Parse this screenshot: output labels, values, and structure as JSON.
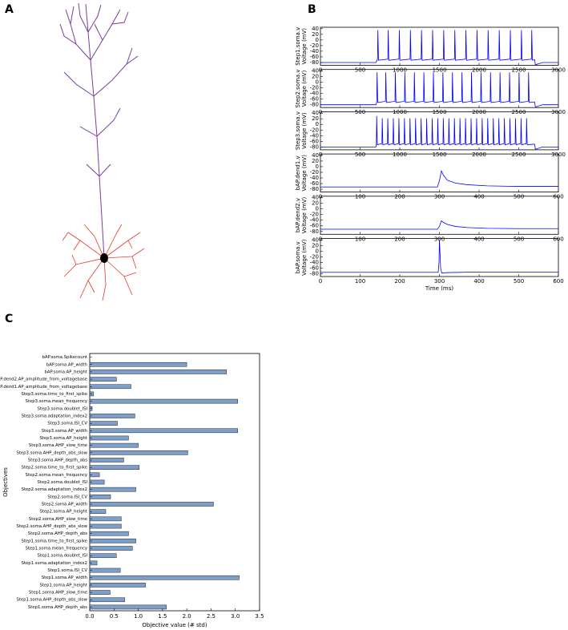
{
  "panel_labels": [
    "A",
    "B",
    "C"
  ],
  "chart_data": [
    {
      "type": "line",
      "ylabel": [
        "Step1.soma.v",
        "Voltage (mV)"
      ],
      "color": "#0000ff",
      "x": [
        0,
        700,
        720,
        724,
        732,
        850,
        854,
        862,
        990,
        994,
        1002,
        1130,
        1134,
        1142,
        1270,
        1274,
        1282,
        1410,
        1414,
        1422,
        1550,
        1554,
        1562,
        1690,
        1694,
        1702,
        1830,
        1834,
        1842,
        1970,
        1974,
        1982,
        2110,
        2114,
        2122,
        2250,
        2254,
        2262,
        2390,
        2394,
        2402,
        2530,
        2534,
        2542,
        2660,
        2664,
        2672,
        2700,
        2710,
        2800,
        3000
      ],
      "values": [
        -80,
        -80,
        -68,
        35,
        -72,
        -68,
        35,
        -72,
        -68,
        35,
        -72,
        -68,
        35,
        -72,
        -68,
        35,
        -72,
        -68,
        35,
        -72,
        -68,
        35,
        -72,
        -68,
        35,
        -72,
        -68,
        35,
        -72,
        -68,
        35,
        -72,
        -68,
        35,
        -72,
        -68,
        35,
        -72,
        -68,
        35,
        -72,
        -68,
        35,
        -72,
        -68,
        35,
        -72,
        -70,
        -88,
        -80,
        -80
      ],
      "xlim": [
        0,
        3000
      ],
      "xticks": [
        0,
        500,
        1000,
        1500,
        2000,
        2500,
        3000
      ],
      "ylim": [
        -90,
        45
      ],
      "yticks": [
        40,
        20,
        0,
        -20,
        -40,
        -60,
        -80
      ]
    },
    {
      "type": "line",
      "ylabel": [
        "Step2.soma.v",
        "Voltage (mV)"
      ],
      "color": "#0000ff",
      "x": [
        0,
        700,
        710,
        714,
        722,
        820,
        824,
        832,
        940,
        944,
        952,
        1060,
        1064,
        1072,
        1180,
        1184,
        1192,
        1300,
        1304,
        1312,
        1420,
        1424,
        1432,
        1540,
        1544,
        1552,
        1660,
        1664,
        1672,
        1780,
        1784,
        1792,
        1900,
        1904,
        1912,
        2020,
        2024,
        2032,
        2140,
        2144,
        2152,
        2260,
        2264,
        2272,
        2380,
        2384,
        2392,
        2500,
        2504,
        2512,
        2620,
        2624,
        2632,
        2700,
        2710,
        2800,
        3000
      ],
      "values": [
        -80,
        -80,
        -68,
        35,
        -72,
        -68,
        35,
        -72,
        -68,
        35,
        -72,
        -68,
        35,
        -72,
        -68,
        35,
        -72,
        -68,
        35,
        -72,
        -68,
        35,
        -72,
        -68,
        35,
        -72,
        -68,
        35,
        -72,
        -68,
        35,
        -72,
        -68,
        35,
        -72,
        -68,
        35,
        -72,
        -68,
        35,
        -72,
        -68,
        35,
        -72,
        -68,
        35,
        -72,
        -68,
        35,
        -72,
        -68,
        35,
        -72,
        -70,
        -88,
        -80,
        -80
      ],
      "xlim": [
        0,
        3000
      ],
      "xticks": [
        0,
        500,
        1000,
        1500,
        2000,
        2500,
        3000
      ],
      "ylim": [
        -90,
        45
      ],
      "yticks": [
        40,
        20,
        0,
        -20,
        -40,
        -60,
        -80
      ]
    },
    {
      "type": "line",
      "ylabel": [
        "Step3.soma.v",
        "Voltage (mV)"
      ],
      "color": "#0000ff",
      "x": [
        0,
        700,
        705,
        709,
        717,
        775,
        779,
        787,
        845,
        849,
        857,
        915,
        919,
        927,
        985,
        989,
        997,
        1055,
        1059,
        1067,
        1125,
        1129,
        1137,
        1195,
        1199,
        1207,
        1265,
        1269,
        1277,
        1335,
        1339,
        1347,
        1405,
        1409,
        1417,
        1475,
        1479,
        1487,
        1545,
        1549,
        1557,
        1615,
        1619,
        1627,
        1685,
        1689,
        1697,
        1755,
        1759,
        1767,
        1825,
        1829,
        1837,
        1895,
        1899,
        1907,
        1965,
        1969,
        1977,
        2035,
        2039,
        2047,
        2105,
        2109,
        2117,
        2175,
        2179,
        2187,
        2245,
        2249,
        2257,
        2315,
        2319,
        2327,
        2385,
        2389,
        2397,
        2455,
        2459,
        2467,
        2525,
        2529,
        2537,
        2595,
        2599,
        2607,
        2700,
        2710,
        2800,
        3000
      ],
      "values": [
        -80,
        -80,
        -68,
        30,
        -72,
        -68,
        22,
        -72,
        -68,
        22,
        -72,
        -68,
        22,
        -72,
        -68,
        22,
        -72,
        -68,
        22,
        -72,
        -68,
        22,
        -72,
        -68,
        22,
        -72,
        -68,
        22,
        -72,
        -68,
        22,
        -72,
        -68,
        22,
        -72,
        -68,
        22,
        -72,
        -68,
        22,
        -72,
        -68,
        22,
        -72,
        -68,
        22,
        -72,
        -68,
        22,
        -72,
        -68,
        22,
        -72,
        -68,
        22,
        -72,
        -68,
        22,
        -72,
        -68,
        22,
        -72,
        -68,
        22,
        -72,
        -68,
        22,
        -72,
        -68,
        22,
        -72,
        -68,
        22,
        -72,
        -68,
        22,
        -72,
        -68,
        22,
        -72,
        -68,
        22,
        -72,
        -68,
        22,
        -72,
        -70,
        -88,
        -80,
        -80
      ],
      "xlim": [
        0,
        3000
      ],
      "xticks": [
        0,
        500,
        1000,
        1500,
        2000,
        2500,
        3000
      ],
      "ylim": [
        -90,
        45
      ],
      "yticks": [
        40,
        20,
        0,
        -20,
        -40,
        -60,
        -80
      ]
    },
    {
      "type": "line",
      "ylabel": [
        "bAP.dend1.v",
        "Voltage (mV)"
      ],
      "color": "#0000ff",
      "x": [
        0,
        295,
        300,
        305,
        310,
        320,
        340,
        370,
        420,
        500,
        600
      ],
      "values": [
        -72,
        -72,
        -50,
        -15,
        -30,
        -48,
        -58,
        -64,
        -68,
        -70,
        -70
      ],
      "xlim": [
        0,
        600
      ],
      "xticks": [
        0,
        100,
        200,
        300,
        400,
        500,
        600
      ],
      "ylim": [
        -90,
        45
      ],
      "yticks": [
        40,
        20,
        0,
        -20,
        -40,
        -60,
        -80
      ]
    },
    {
      "type": "line",
      "ylabel": [
        "bAP.dend2.v",
        "Voltage (mV)"
      ],
      "color": "#0000ff",
      "x": [
        0,
        295,
        300,
        305,
        310,
        320,
        340,
        370,
        420,
        500,
        600
      ],
      "values": [
        -72,
        -72,
        -62,
        -42,
        -48,
        -55,
        -62,
        -66,
        -69,
        -70,
        -70
      ],
      "xlim": [
        0,
        600
      ],
      "xticks": [
        0,
        100,
        200,
        300,
        400,
        500,
        600
      ],
      "ylim": [
        -90,
        45
      ],
      "yticks": [
        40,
        20,
        0,
        -20,
        -40,
        -60,
        -80
      ]
    },
    {
      "type": "line",
      "ylabel": [
        "bAP.soma.v",
        "Voltage (mV)"
      ],
      "xlabel": "Time (ms)",
      "color": "#0000ff",
      "x": [
        0,
        297,
        299,
        300,
        301,
        303,
        306,
        320,
        400,
        600
      ],
      "values": [
        -75,
        -75,
        -40,
        40,
        10,
        -60,
        -78,
        -76,
        -74,
        -74
      ],
      "xlim": [
        0,
        600
      ],
      "xticks": [
        0,
        100,
        200,
        300,
        400,
        500,
        600
      ],
      "ylim": [
        -90,
        45
      ],
      "yticks": [
        40,
        20,
        0,
        -20,
        -40,
        -60,
        -80
      ]
    },
    {
      "type": "barh",
      "xlabel": "Objective value (# std)",
      "ylabel": "Objectives",
      "color": "#7da0c8",
      "categories": [
        "Step1.soma.AHP_depth_abs",
        "Step1.soma.AHP_depth_abs_slow",
        "Step1.soma.AHP_slow_time",
        "Step1.soma.AP_height",
        "Step1.soma.AP_width",
        "Step1.soma.ISI_CV",
        "Step1.soma.adaptation_index2",
        "Step1.soma.doublet_ISI",
        "Step1.soma.mean_frequency",
        "Step1.soma.time_to_first_spike",
        "Step2.soma.AHP_depth_abs",
        "Step2.soma.AHP_depth_abs_slow",
        "Step2.soma.AHP_slow_time",
        "Step2.soma.AP_height",
        "Step2.soma.AP_width",
        "Step2.soma.ISI_CV",
        "Step2.soma.adaptation_index2",
        "Step2.soma.doublet_ISI",
        "Step2.soma.mean_frequency",
        "Step2.soma.time_to_first_spike",
        "Step3.soma.AHP_depth_abs",
        "Step3.soma.AHP_depth_abs_slow",
        "Step3.soma.AHP_slow_time",
        "Step3.soma.AP_height",
        "Step3.soma.AP_width",
        "Step3.soma.ISI_CV",
        "Step3.soma.adaptation_index2",
        "Step3.soma.doublet_ISI",
        "Step3.soma.mean_frequency",
        "Step3.soma.time_to_first_spike",
        "bAP.dend1.AP_amplitude_from_voltagebase",
        "bAP.dend2.AP_amplitude_from_voltagebase",
        "bAP.soma.AP_height",
        "bAP.soma.AP_width",
        "bAP.soma.Spikecount"
      ],
      "values": [
        1.58,
        0.72,
        0.42,
        1.15,
        3.08,
        0.63,
        0.15,
        0.55,
        0.88,
        0.95,
        0.8,
        0.65,
        0.65,
        0.33,
        2.55,
        0.43,
        0.95,
        0.3,
        0.2,
        1.02,
        0.7,
        2.02,
        1.0,
        0.8,
        3.05,
        0.57,
        0.93,
        0.05,
        3.05,
        0.08,
        0.85,
        0.55,
        2.82,
        2.0,
        0
      ],
      "xlim": [
        0,
        3.5
      ],
      "xticks": [
        {
          "value": 0,
          "label": "0.0"
        },
        0.5,
        {
          "value": 1,
          "label": "1.0"
        },
        1.5,
        {
          "value": 2,
          "label": "2.0"
        },
        2.5,
        {
          "value": 3,
          "label": "3.0"
        },
        3.5
      ]
    }
  ]
}
